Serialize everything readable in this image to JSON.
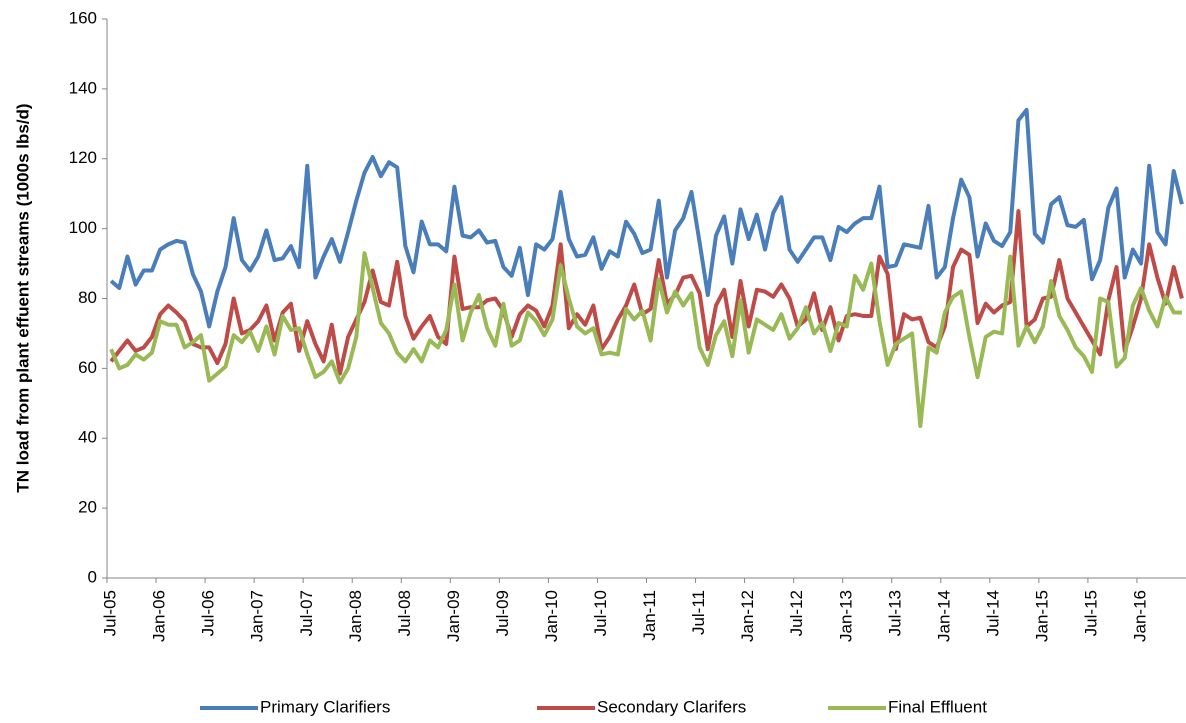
{
  "chart_data": {
    "type": "line",
    "y_label": "TN load from plant effuent streams (1000s lbs/d)",
    "categories": [
      "Jul-05",
      null,
      null,
      null,
      null,
      null,
      "Jan-06",
      null,
      null,
      null,
      null,
      null,
      "Jul-06",
      null,
      null,
      null,
      null,
      null,
      "Jan-07",
      null,
      null,
      null,
      null,
      null,
      "Jul-07",
      null,
      null,
      null,
      null,
      null,
      "Jan-08",
      null,
      null,
      null,
      null,
      null,
      "Jul-08",
      null,
      null,
      null,
      null,
      null,
      "Jan-09",
      null,
      null,
      null,
      null,
      null,
      "Jul-09",
      null,
      null,
      null,
      null,
      null,
      "Jan-10",
      null,
      null,
      null,
      null,
      null,
      "Jul-10",
      null,
      null,
      null,
      null,
      null,
      "Jan-11",
      null,
      null,
      null,
      null,
      null,
      "Jul-11",
      null,
      null,
      null,
      null,
      null,
      "Jan-12",
      null,
      null,
      null,
      null,
      null,
      "Jul-12",
      null,
      null,
      null,
      null,
      null,
      "Jan-13",
      null,
      null,
      null,
      null,
      null,
      "Jul-13",
      null,
      null,
      null,
      null,
      null,
      "Jan-14",
      null,
      null,
      null,
      null,
      null,
      "Jul-14",
      null,
      null,
      null,
      null,
      null,
      "Jan-15",
      null,
      null,
      null,
      null,
      null,
      "Jul-15",
      null,
      null,
      null,
      null,
      null,
      "Jan-16",
      null,
      null,
      null,
      null,
      null
    ],
    "series": [
      {
        "name": "Primary Clarifiers",
        "color": "#4a7ebb",
        "values": [
          85,
          83,
          92,
          84,
          88,
          88,
          94,
          95.5,
          96.5,
          96,
          87,
          82,
          72,
          82,
          89,
          103,
          91,
          88,
          92,
          99.5,
          91,
          91.5,
          95,
          89,
          118,
          86,
          92,
          97,
          90.5,
          99,
          108,
          116,
          120.5,
          115,
          119,
          117.5,
          95,
          87.5,
          102,
          95.5,
          95.5,
          93.5,
          112,
          98,
          97.5,
          99.5,
          96,
          96.5,
          89,
          86.5,
          94.5,
          81,
          95.5,
          94,
          97,
          110.5,
          97,
          92,
          92.5,
          97.5,
          88.5,
          93.5,
          92,
          102,
          98.5,
          93,
          94,
          108,
          86,
          99.5,
          103,
          110.5,
          96,
          81,
          98,
          103.5,
          90,
          105.5,
          97,
          104,
          94,
          104.5,
          109,
          94,
          90.5,
          94,
          97.5,
          97.5,
          91,
          100.5,
          99,
          101.5,
          103,
          103,
          112,
          89,
          89.5,
          95.5,
          95,
          94.5,
          106.5,
          86,
          89,
          103,
          114,
          109,
          92,
          101.5,
          96.5,
          95,
          99,
          131,
          134,
          98.5,
          96,
          107,
          109,
          101,
          100.5,
          102.5,
          85.5,
          91,
          106,
          111.5,
          86,
          94,
          90,
          118,
          99,
          95.5,
          116.5,
          107
        ]
      },
      {
        "name": "Secondary Clarifers",
        "color": "#be4b48",
        "values": [
          62,
          65,
          68,
          65,
          66,
          69,
          75.5,
          78,
          76,
          73.5,
          67,
          66,
          66,
          61.5,
          67,
          80,
          70,
          71,
          73.5,
          78,
          68,
          76,
          78.5,
          65,
          73.5,
          67,
          62,
          72.5,
          58.5,
          69,
          74,
          79,
          88,
          79,
          78,
          90.5,
          75,
          68.5,
          72,
          75,
          69,
          67,
          92,
          77,
          77.5,
          77.5,
          79.5,
          80,
          76.5,
          69,
          75.5,
          78,
          76.5,
          72,
          78,
          95.5,
          71.5,
          75.5,
          72.5,
          78,
          65.5,
          69,
          74,
          78,
          84,
          75.5,
          77,
          91,
          78.5,
          81,
          86,
          86.5,
          81.5,
          65.5,
          78,
          82.5,
          69,
          85,
          72,
          82.5,
          82,
          80.5,
          84,
          80,
          72,
          74,
          81.5,
          71,
          77.5,
          68,
          75,
          75.5,
          75,
          75,
          92,
          87,
          65.5,
          75.5,
          74,
          74.5,
          67.5,
          66,
          72,
          89,
          94,
          92.5,
          73,
          78.5,
          76,
          78,
          79,
          105,
          72,
          74,
          80,
          80.5,
          91,
          80,
          76,
          72,
          68,
          64,
          79.5,
          89,
          65,
          72,
          80,
          95.5,
          86,
          78.5,
          89,
          80
        ]
      },
      {
        "name": "Final Effluent",
        "color": "#98b954",
        "values": [
          65.5,
          60,
          61,
          64,
          62.5,
          64.5,
          73.5,
          72.5,
          72.5,
          66,
          67.5,
          69.5,
          56.5,
          58.5,
          60.5,
          69.5,
          67.5,
          70.5,
          65,
          72,
          64,
          75,
          71,
          71.5,
          64,
          57.5,
          59,
          62,
          56,
          60,
          69,
          93,
          83,
          73,
          70,
          64.5,
          62,
          65.5,
          62,
          68,
          66,
          71,
          84,
          68,
          76,
          81,
          71.5,
          66.5,
          78.5,
          66.5,
          68,
          76,
          73.5,
          69.5,
          74,
          89.5,
          80,
          72,
          70,
          71.5,
          64,
          64.5,
          64,
          77,
          74,
          76.5,
          68,
          85.5,
          76,
          82,
          78,
          81.5,
          66,
          61,
          69.5,
          73.5,
          63.5,
          79.5,
          64.5,
          74,
          72.5,
          71,
          75.5,
          68.5,
          71.5,
          77.5,
          70,
          73,
          65,
          73,
          72,
          86.5,
          82.5,
          90,
          73.5,
          61,
          67,
          68.5,
          70,
          43.5,
          66,
          64.5,
          76,
          80.5,
          82,
          69,
          57.5,
          69,
          70.5,
          70,
          92,
          66.5,
          72,
          67.5,
          72,
          85,
          75,
          71,
          66,
          63.5,
          59,
          80,
          79,
          60.5,
          63,
          78,
          83,
          76.5,
          72,
          80.5,
          76,
          76
        ]
      }
    ],
    "ylim": [
      0,
      160
    ],
    "yticks": [
      0,
      20,
      40,
      60,
      80,
      100,
      120,
      140,
      160
    ],
    "grid": false,
    "legend": "bottom"
  }
}
